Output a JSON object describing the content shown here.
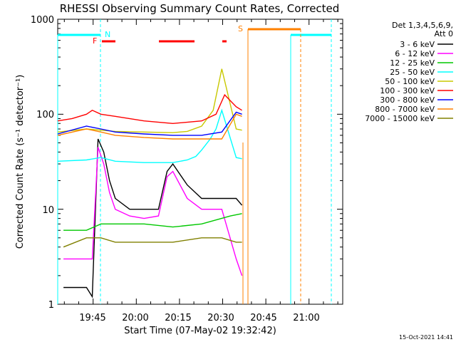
{
  "chart_data": {
    "type": "line",
    "title": "RHESSI Observing Summary Count Rates, Corrected",
    "xlabel": "Start Time (07-May-02 19:32:42)",
    "ylabel": "Corrected Count Rate (s⁻¹ detector⁻¹)",
    "yscale": "log",
    "ylim": [
      1,
      1000
    ],
    "xlim_minutes_after_start": [
      0,
      99
    ],
    "x_ticks": [
      "19:45",
      "20:00",
      "20:15",
      "20:30",
      "20:45",
      "21:00"
    ],
    "y_ticks": [
      "1",
      "10",
      "100",
      "1000"
    ],
    "legend_header": [
      "Det 1,3,4,5,6,9,",
      "Att 0"
    ],
    "legend_position": "right",
    "series": [
      {
        "name": "3 - 6 keV",
        "color": "#000000",
        "x": [
          2,
          10,
          12,
          14,
          16,
          18,
          20,
          25,
          30,
          35,
          38,
          40,
          45,
          50,
          55,
          57,
          62,
          64
        ],
        "y": [
          1.5,
          1.5,
          1.2,
          55,
          40,
          20,
          13,
          10,
          10,
          10,
          25,
          30,
          18,
          13,
          13,
          13,
          13,
          11
        ]
      },
      {
        "name": "6 - 12 keV",
        "color": "#ff00ff",
        "x": [
          2,
          10,
          12,
          14,
          16,
          18,
          20,
          25,
          30,
          35,
          38,
          40,
          45,
          50,
          55,
          57,
          62,
          64
        ],
        "y": [
          3,
          3,
          3,
          45,
          30,
          15,
          10,
          8.5,
          8,
          8.5,
          22,
          25,
          13,
          10,
          10,
          10,
          3,
          2
        ]
      },
      {
        "name": "12 - 25 keV",
        "color": "#00c800",
        "x": [
          2,
          10,
          15,
          20,
          30,
          40,
          50,
          60,
          64
        ],
        "y": [
          6,
          6,
          7,
          7,
          7,
          6.5,
          7,
          8.5,
          9
        ]
      },
      {
        "name": "25 - 50 keV",
        "color": "#00ffff",
        "x": [
          0,
          10,
          15,
          20,
          30,
          40,
          45,
          48,
          50,
          53,
          55,
          57,
          62,
          64
        ],
        "y": [
          32,
          33,
          35,
          32,
          31,
          31,
          33,
          36,
          42,
          55,
          70,
          110,
          35,
          34
        ]
      },
      {
        "name": "50 - 100 keV",
        "color": "#c8c800",
        "x": [
          0,
          10,
          15,
          20,
          30,
          40,
          45,
          50,
          54,
          57,
          62,
          64
        ],
        "y": [
          65,
          70,
          68,
          66,
          65,
          64,
          66,
          75,
          110,
          300,
          70,
          68
        ]
      },
      {
        "name": "100 - 300 keV",
        "color": "#ff0000",
        "x": [
          0,
          5,
          10,
          12,
          15,
          20,
          30,
          40,
          50,
          55,
          58,
          62,
          64
        ],
        "y": [
          85,
          90,
          100,
          110,
          100,
          95,
          85,
          80,
          85,
          100,
          160,
          120,
          110
        ]
      },
      {
        "name": "300 - 800 keV",
        "color": "#0000ff",
        "x": [
          0,
          10,
          15,
          20,
          30,
          40,
          50,
          57,
          62,
          64
        ],
        "y": [
          62,
          75,
          70,
          65,
          62,
          60,
          60,
          65,
          105,
          100
        ]
      },
      {
        "name": "800 - 7000 keV",
        "color": "#ff8000",
        "x": [
          0,
          10,
          15,
          20,
          30,
          40,
          50,
          57,
          62,
          64
        ],
        "y": [
          60,
          70,
          65,
          60,
          57,
          55,
          55,
          55,
          100,
          95
        ]
      },
      {
        "name": "7000 - 15000 keV",
        "color": "#808000",
        "x": [
          2,
          10,
          15,
          20,
          30,
          40,
          50,
          57,
          62,
          64
        ],
        "y": [
          4,
          5,
          5,
          4.5,
          4.5,
          4.5,
          5,
          5,
          4.5,
          4.5
        ]
      }
    ],
    "annotations": [
      {
        "label": "N",
        "color": "#00ffff"
      },
      {
        "label": "F",
        "color": "#ff0000"
      },
      {
        "label": "S",
        "color": "#ff8000"
      }
    ],
    "timestamp": "15-Oct-2021 14:41"
  }
}
